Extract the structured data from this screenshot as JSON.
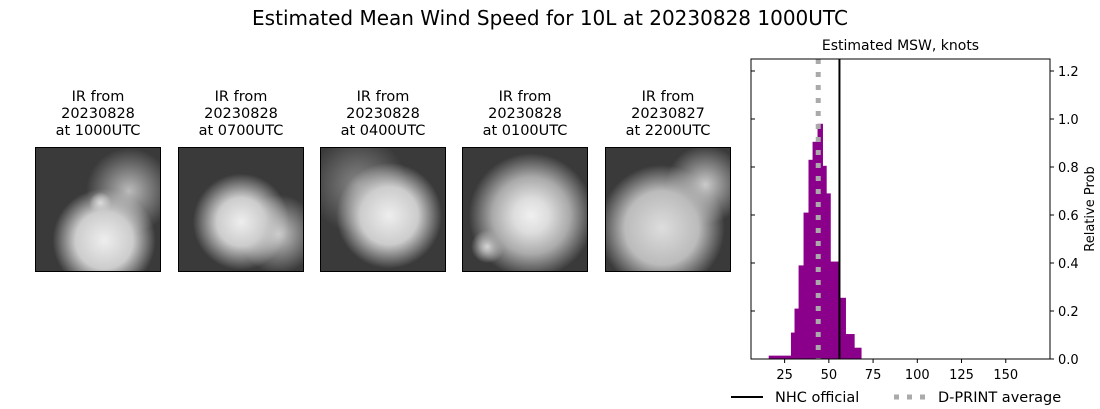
{
  "title": "Estimated Mean Wind Speed for 10L at 20230828 1000UTC",
  "panels": [
    {
      "line1": "IR from",
      "line2": "20230828",
      "line3": "at 1000UTC"
    },
    {
      "line1": "IR from",
      "line2": "20230828",
      "line3": "at 0700UTC"
    },
    {
      "line1": "IR from",
      "line2": "20230828",
      "line3": "at 0400UTC"
    },
    {
      "line1": "IR from",
      "line2": "20230828",
      "line3": "at 0100UTC"
    },
    {
      "line1": "IR from",
      "line2": "20230827",
      "line3": "at 2200UTC"
    }
  ],
  "chart_data": {
    "type": "bar",
    "title": "Estimated MSW, knots",
    "xlabel": "",
    "ylabel": "Relative Prob",
    "xlim": [
      6,
      175
    ],
    "ylim": [
      0,
      1.25
    ],
    "xticks": [
      25,
      50,
      75,
      100,
      125,
      150
    ],
    "yticks": [
      0.0,
      0.2,
      0.4,
      0.6,
      0.8,
      1.0,
      1.2
    ],
    "bar_color": "#8b008b",
    "bins": [
      {
        "left": 16,
        "right": 28.6,
        "value": 0.014
      },
      {
        "left": 28.6,
        "right": 30.6,
        "value": 0.11
      },
      {
        "left": 30.6,
        "right": 32.9,
        "value": 0.21
      },
      {
        "left": 32.9,
        "right": 35.7,
        "value": 0.39
      },
      {
        "left": 35.7,
        "right": 38.5,
        "value": 0.61
      },
      {
        "left": 38.5,
        "right": 40.8,
        "value": 0.83
      },
      {
        "left": 40.8,
        "right": 43.6,
        "value": 0.905
      },
      {
        "left": 43.6,
        "right": 46.4,
        "value": 0.98
      },
      {
        "left": 46.4,
        "right": 48.5,
        "value": 0.805
      },
      {
        "left": 48.5,
        "right": 50.8,
        "value": 0.69
      },
      {
        "left": 50.8,
        "right": 55.3,
        "value": 0.406
      },
      {
        "left": 55.3,
        "right": 59.4,
        "value": 0.255
      },
      {
        "left": 59.4,
        "right": 64.3,
        "value": 0.104
      },
      {
        "left": 64.3,
        "right": 68.2,
        "value": 0.047
      }
    ],
    "lines": [
      {
        "name": "NHC official",
        "x": 56,
        "color": "#000000",
        "style": "solid"
      },
      {
        "name": "D-PRINT average",
        "x": 44,
        "color": "#aaaaaa",
        "style": "dotted"
      }
    ],
    "legend_position": "bottom"
  }
}
